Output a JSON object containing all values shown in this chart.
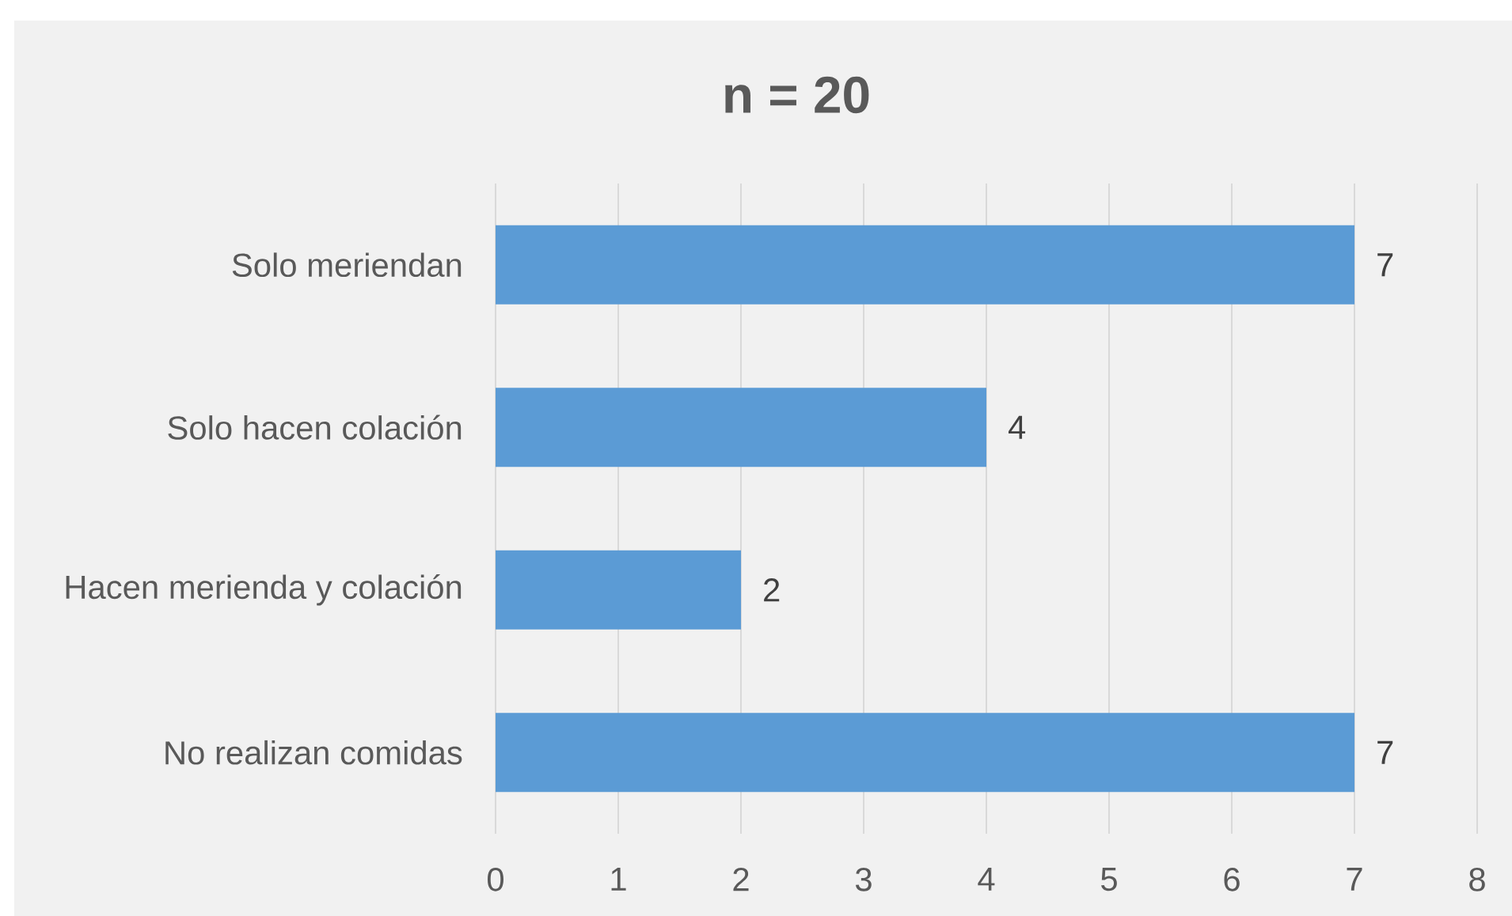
{
  "chart_data": {
    "type": "bar",
    "orientation": "horizontal",
    "title": "n = 20",
    "categories": [
      "Solo meriendan",
      "Solo hacen colación",
      "Hacen merienda y colación",
      "No realizan comidas"
    ],
    "values": [
      7,
      4,
      2,
      7
    ],
    "color": "#5b9bd5",
    "xlim": [
      0,
      8
    ],
    "xticks": [
      0,
      1,
      2,
      3,
      4,
      5,
      6,
      7,
      8
    ],
    "grid": "x",
    "data_labels": true
  }
}
